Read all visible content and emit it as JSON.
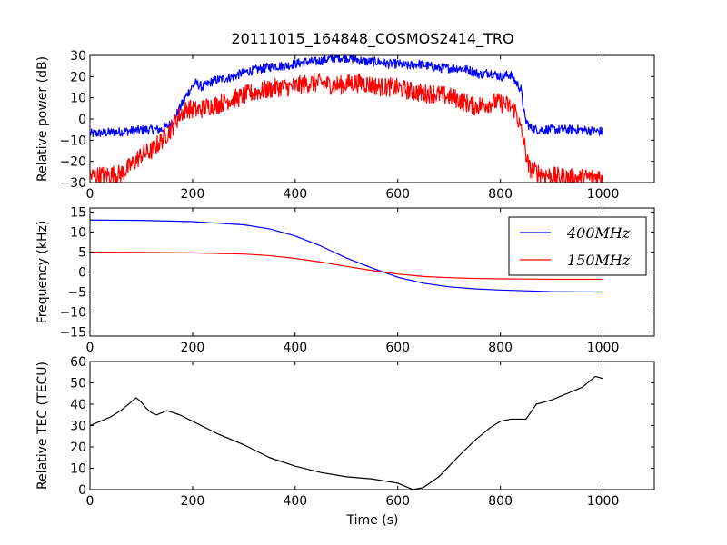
{
  "figure": {
    "title": "20111015_164848_COSMOS2414_TRO",
    "xlabel": "Time (s)"
  },
  "chart_data": [
    {
      "type": "line",
      "xlim": [
        0,
        1100
      ],
      "ylim": [
        -30,
        30
      ],
      "xticks": [
        "0",
        "200",
        "400",
        "600",
        "800",
        "1000"
      ],
      "yticks": [
        "-30",
        "-20",
        "-10",
        "0",
        "10",
        "20",
        "30"
      ],
      "xlabel": "",
      "ylabel": "Relative power (dB)",
      "grid": false,
      "series": [
        {
          "color": "#0000ff",
          "noise": 2.2,
          "points": [
            [
              0,
              -7
            ],
            [
              60,
              -6
            ],
            [
              110,
              -5
            ],
            [
              140,
              -5
            ],
            [
              160,
              -2
            ],
            [
              175,
              5
            ],
            [
              190,
              12
            ],
            [
              205,
              17
            ],
            [
              220,
              15
            ],
            [
              240,
              18
            ],
            [
              260,
              19
            ],
            [
              280,
              20
            ],
            [
              300,
              22
            ],
            [
              320,
              23
            ],
            [
              340,
              24
            ],
            [
              360,
              25
            ],
            [
              380,
              25
            ],
            [
              400,
              26
            ],
            [
              420,
              27
            ],
            [
              440,
              27
            ],
            [
              460,
              28
            ],
            [
              480,
              29
            ],
            [
              500,
              29
            ],
            [
              520,
              28
            ],
            [
              540,
              27
            ],
            [
              560,
              27
            ],
            [
              580,
              26
            ],
            [
              600,
              26
            ],
            [
              620,
              25
            ],
            [
              640,
              26
            ],
            [
              660,
              25
            ],
            [
              680,
              24
            ],
            [
              700,
              24
            ],
            [
              720,
              24
            ],
            [
              740,
              23
            ],
            [
              760,
              21
            ],
            [
              780,
              22
            ],
            [
              800,
              20
            ],
            [
              820,
              21
            ],
            [
              840,
              14
            ],
            [
              848,
              0
            ],
            [
              858,
              -4
            ],
            [
              870,
              -5
            ],
            [
              900,
              -5
            ],
            [
              950,
              -5
            ],
            [
              1000,
              -6
            ]
          ]
        },
        {
          "color": "#ff0000",
          "noise": 4.5,
          "points": [
            [
              0,
              -27
            ],
            [
              60,
              -26
            ],
            [
              80,
              -22
            ],
            [
              100,
              -17
            ],
            [
              120,
              -15
            ],
            [
              140,
              -10
            ],
            [
              160,
              -4
            ],
            [
              175,
              2
            ],
            [
              190,
              5
            ],
            [
              210,
              4
            ],
            [
              230,
              6
            ],
            [
              250,
              7
            ],
            [
              270,
              9
            ],
            [
              290,
              10
            ],
            [
              310,
              12
            ],
            [
              330,
              13
            ],
            [
              350,
              14
            ],
            [
              370,
              15
            ],
            [
              390,
              15
            ],
            [
              410,
              16
            ],
            [
              430,
              17
            ],
            [
              450,
              17
            ],
            [
              470,
              16
            ],
            [
              490,
              16
            ],
            [
              510,
              17
            ],
            [
              530,
              17
            ],
            [
              550,
              16
            ],
            [
              570,
              15
            ],
            [
              590,
              15
            ],
            [
              610,
              14
            ],
            [
              630,
              13
            ],
            [
              650,
              12
            ],
            [
              670,
              12
            ],
            [
              690,
              11
            ],
            [
              710,
              10
            ],
            [
              730,
              8
            ],
            [
              750,
              6
            ],
            [
              770,
              7
            ],
            [
              790,
              8
            ],
            [
              810,
              7
            ],
            [
              830,
              4
            ],
            [
              845,
              -10
            ],
            [
              855,
              -23
            ],
            [
              870,
              -25
            ],
            [
              900,
              -27
            ],
            [
              950,
              -28
            ],
            [
              1000,
              -27
            ]
          ]
        }
      ]
    },
    {
      "type": "line",
      "xlim": [
        0,
        1100
      ],
      "ylim": [
        -16,
        16
      ],
      "xticks": [
        "0",
        "200",
        "400",
        "600",
        "800",
        "1000"
      ],
      "yticks": [
        "-15",
        "-10",
        "-5",
        "0",
        "5",
        "10",
        "15"
      ],
      "xlabel": "",
      "ylabel": "Frequency (kHz)",
      "grid": false,
      "legend": "top-right",
      "series": [
        {
          "name": "400MHz",
          "color": "#0000ff",
          "points": [
            [
              0,
              13
            ],
            [
              100,
              12.9
            ],
            [
              200,
              12.6
            ],
            [
              300,
              11.8
            ],
            [
              350,
              10.8
            ],
            [
              400,
              9
            ],
            [
              450,
              6.5
            ],
            [
              500,
              3.5
            ],
            [
              550,
              1
            ],
            [
              600,
              -1.3
            ],
            [
              650,
              -2.8
            ],
            [
              700,
              -3.7
            ],
            [
              750,
              -4.2
            ],
            [
              800,
              -4.5
            ],
            [
              850,
              -4.7
            ],
            [
              900,
              -4.9
            ],
            [
              1000,
              -5
            ]
          ]
        },
        {
          "name": "150MHz",
          "color": "#ff0000",
          "points": [
            [
              0,
              5
            ],
            [
              100,
              4.9
            ],
            [
              200,
              4.8
            ],
            [
              300,
              4.5
            ],
            [
              350,
              4.1
            ],
            [
              400,
              3.4
            ],
            [
              450,
              2.5
            ],
            [
              500,
              1.4
            ],
            [
              550,
              0.4
            ],
            [
              600,
              -0.5
            ],
            [
              650,
              -1.1
            ],
            [
              700,
              -1.4
            ],
            [
              750,
              -1.6
            ],
            [
              800,
              -1.7
            ],
            [
              850,
              -1.75
            ],
            [
              900,
              -1.8
            ],
            [
              1000,
              -1.8
            ]
          ]
        }
      ]
    },
    {
      "type": "line",
      "xlim": [
        0,
        1100
      ],
      "ylim": [
        0,
        60
      ],
      "xticks": [
        "0",
        "200",
        "400",
        "600",
        "800",
        "1000"
      ],
      "yticks": [
        "0",
        "10",
        "20",
        "30",
        "40",
        "50",
        "60"
      ],
      "xlabel": "Time (s)",
      "ylabel": "Relative TEC (TECU)",
      "grid": false,
      "series": [
        {
          "color": "#000000",
          "points": [
            [
              0,
              30
            ],
            [
              20,
              32
            ],
            [
              40,
              34
            ],
            [
              60,
              37
            ],
            [
              80,
              41
            ],
            [
              90,
              43
            ],
            [
              100,
              41
            ],
            [
              110,
              38
            ],
            [
              120,
              36
            ],
            [
              130,
              35
            ],
            [
              140,
              36
            ],
            [
              150,
              37
            ],
            [
              175,
              35
            ],
            [
              200,
              32
            ],
            [
              250,
              26
            ],
            [
              300,
              21
            ],
            [
              350,
              15
            ],
            [
              400,
              11
            ],
            [
              450,
              8
            ],
            [
              500,
              6
            ],
            [
              550,
              5
            ],
            [
              600,
              3
            ],
            [
              630,
              0
            ],
            [
              650,
              1
            ],
            [
              680,
              6
            ],
            [
              700,
              11
            ],
            [
              720,
              16
            ],
            [
              750,
              23
            ],
            [
              780,
              29
            ],
            [
              800,
              32
            ],
            [
              820,
              33
            ],
            [
              850,
              33
            ],
            [
              870,
              40
            ],
            [
              900,
              42
            ],
            [
              930,
              45
            ],
            [
              960,
              48
            ],
            [
              985,
              53
            ],
            [
              1000,
              52
            ]
          ]
        }
      ]
    }
  ]
}
